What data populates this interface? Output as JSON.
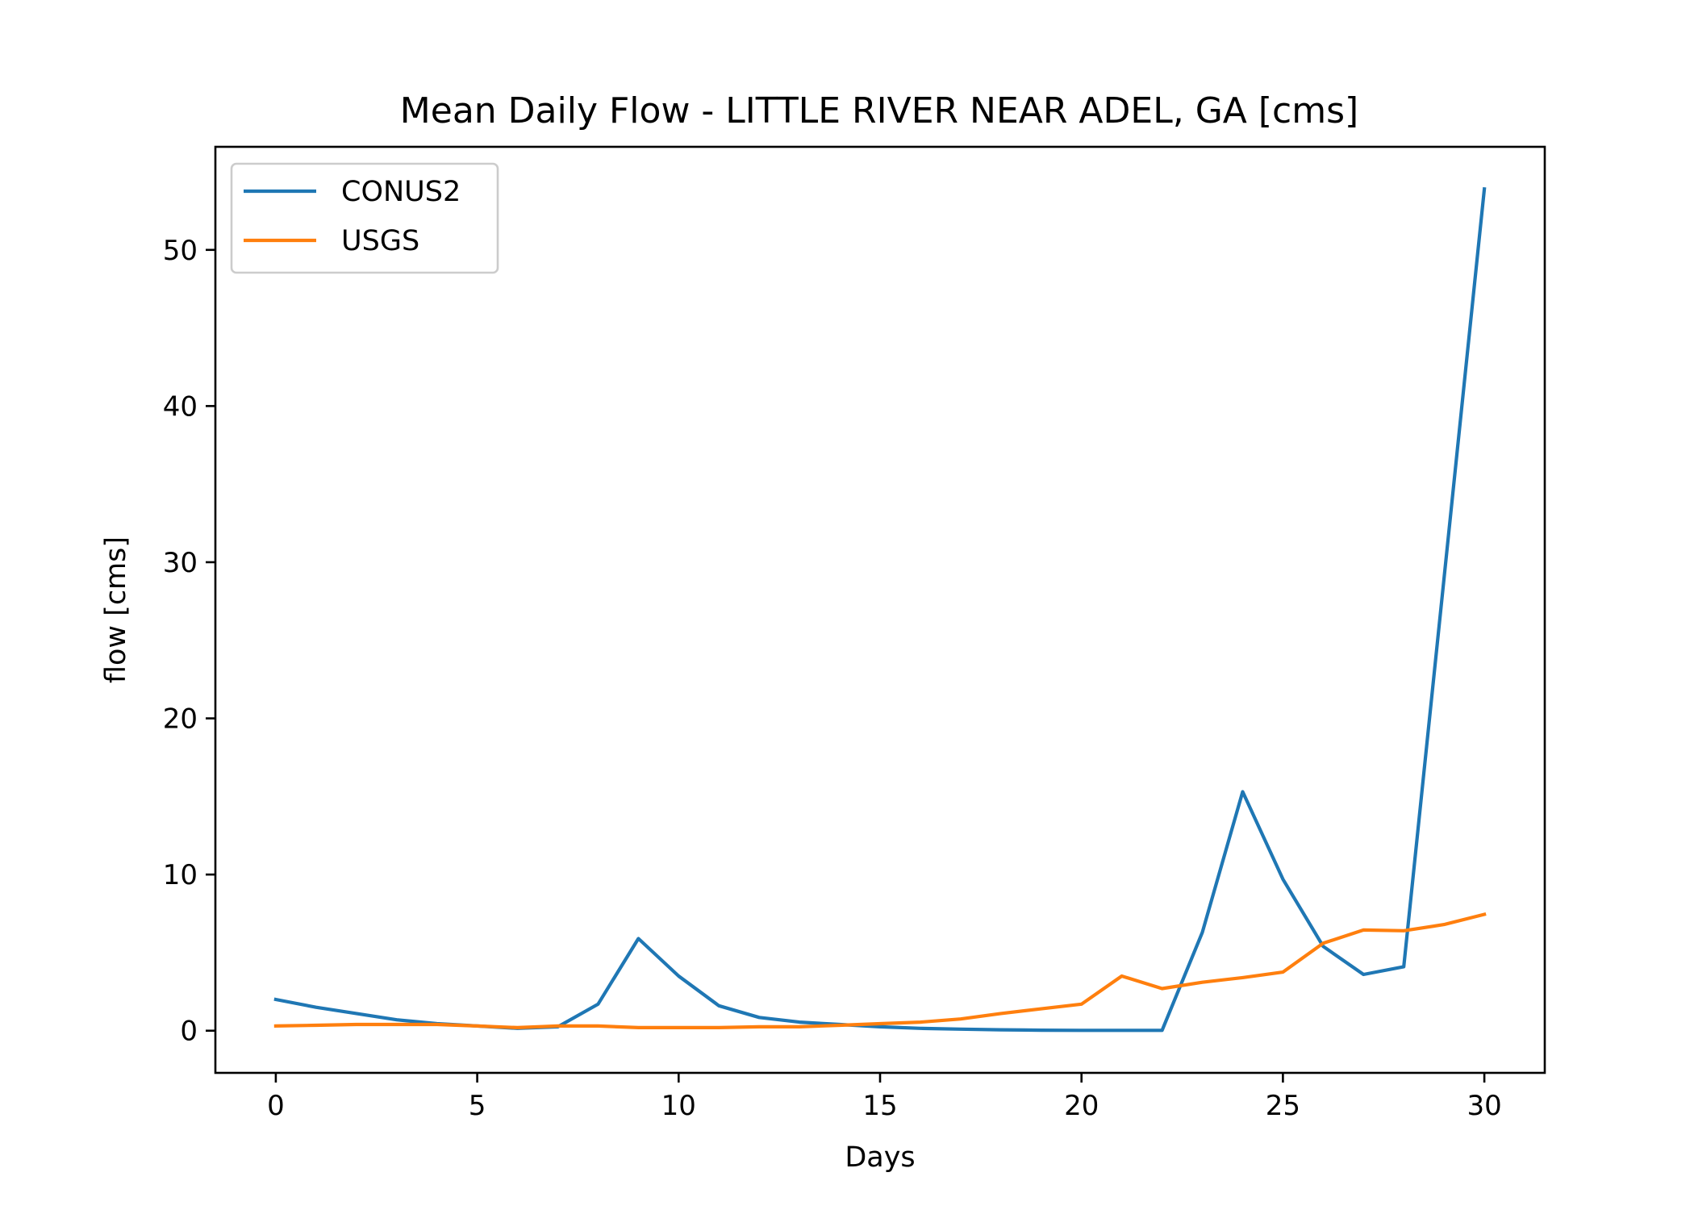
{
  "chart_data": {
    "type": "line",
    "title": "Mean Daily Flow - LITTLE RIVER NEAR ADEL, GA [cms]",
    "xlabel": "Days",
    "ylabel": "flow [cms]",
    "xlim": [
      -1.5,
      31.5
    ],
    "ylim": [
      -2.7,
      56.6
    ],
    "xticks": [
      0,
      5,
      10,
      15,
      20,
      25,
      30
    ],
    "yticks": [
      0,
      10,
      20,
      30,
      40,
      50
    ],
    "grid": false,
    "legend": "upper-left",
    "x": [
      0,
      1,
      2,
      3,
      4,
      5,
      6,
      7,
      8,
      9,
      10,
      11,
      12,
      13,
      14,
      15,
      16,
      17,
      18,
      19,
      20,
      21,
      22,
      23,
      24,
      25,
      26,
      27,
      28,
      29,
      30
    ],
    "series": [
      {
        "name": "CONUS2",
        "color": "#1f77b4",
        "values": [
          2.0,
          1.5,
          1.1,
          0.7,
          0.45,
          0.3,
          0.15,
          0.25,
          1.7,
          5.9,
          3.5,
          1.6,
          0.85,
          0.55,
          0.4,
          0.25,
          0.15,
          0.1,
          0.06,
          0.03,
          0.02,
          0.02,
          0.02,
          6.3,
          15.3,
          9.7,
          5.4,
          3.6,
          4.1,
          29.0,
          53.9
        ]
      },
      {
        "name": "USGS",
        "color": "#ff7f0e",
        "values": [
          0.3,
          0.35,
          0.4,
          0.4,
          0.4,
          0.3,
          0.2,
          0.3,
          0.3,
          0.2,
          0.2,
          0.2,
          0.25,
          0.25,
          0.35,
          0.45,
          0.55,
          0.75,
          1.1,
          1.4,
          1.7,
          3.5,
          2.7,
          3.1,
          3.4,
          3.75,
          5.6,
          6.45,
          6.4,
          6.8,
          7.45
        ]
      }
    ]
  }
}
